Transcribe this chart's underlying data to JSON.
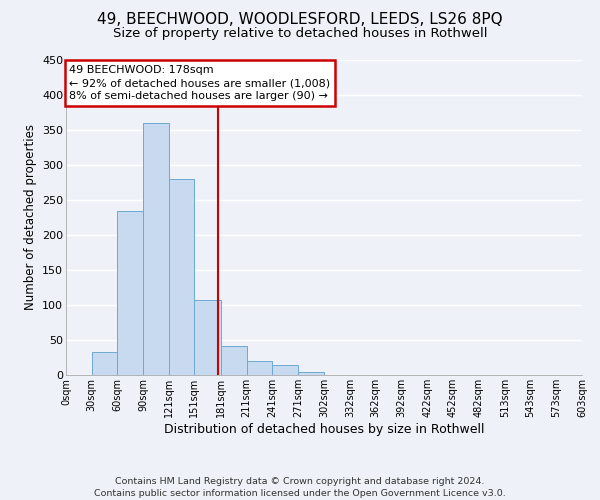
{
  "title": "49, BEECHWOOD, WOODLESFORD, LEEDS, LS26 8PQ",
  "subtitle": "Size of property relative to detached houses in Rothwell",
  "xlabel": "Distribution of detached houses by size in Rothwell",
  "ylabel": "Number of detached properties",
  "bin_edges": [
    0,
    30,
    60,
    90,
    120,
    150,
    181,
    211,
    241,
    271,
    302,
    332,
    362,
    392,
    422,
    452,
    482,
    513,
    543,
    573,
    603
  ],
  "bar_heights": [
    0,
    33,
    235,
    360,
    280,
    107,
    42,
    20,
    15,
    5,
    0,
    0,
    0,
    0,
    0,
    0,
    0,
    0,
    0,
    0
  ],
  "bar_color": "#c8daf0",
  "bar_edge_color": "#6fa8d0",
  "vline_x": 178,
  "vline_color": "#cc0000",
  "box_text_line1": "49 BEECHWOOD: 178sqm",
  "box_text_line2": "← 92% of detached houses are smaller (1,008)",
  "box_text_line3": "8% of semi-detached houses are larger (90) →",
  "box_color": "#cc0000",
  "box_fill": "#ffffff",
  "ylim": [
    0,
    450
  ],
  "xlim": [
    0,
    603
  ],
  "tick_labels": [
    "0sqm",
    "30sqm",
    "60sqm",
    "90sqm",
    "121sqm",
    "151sqm",
    "181sqm",
    "211sqm",
    "241sqm",
    "271sqm",
    "302sqm",
    "332sqm",
    "362sqm",
    "392sqm",
    "422sqm",
    "452sqm",
    "482sqm",
    "513sqm",
    "543sqm",
    "573sqm",
    "603sqm"
  ],
  "tick_positions": [
    0,
    30,
    60,
    90,
    120,
    150,
    181,
    211,
    241,
    271,
    302,
    332,
    362,
    392,
    422,
    452,
    482,
    513,
    543,
    573,
    603
  ],
  "footnote1": "Contains HM Land Registry data © Crown copyright and database right 2024.",
  "footnote2": "Contains public sector information licensed under the Open Government Licence v3.0.",
  "background_color": "#eef2f8",
  "grid_color": "#ffffff",
  "title_fontsize": 11,
  "subtitle_fontsize": 9.5,
  "axis_label_fontsize": 9,
  "tick_fontsize": 7,
  "footnote_fontsize": 6.8,
  "annotation_fontsize": 8,
  "ylabel_fontsize": 8.5
}
